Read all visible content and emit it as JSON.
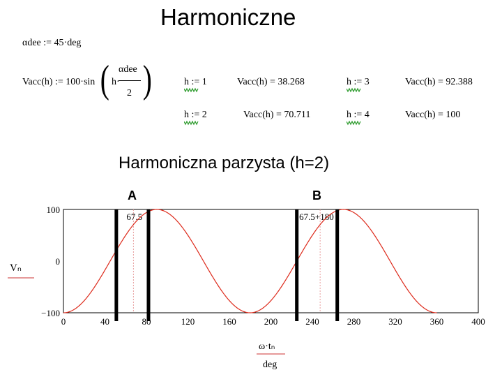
{
  "title": "Harmoniczne",
  "subtitle": "Harmoniczna parzysta (h=2)",
  "equations": {
    "adee_def": "αdee := 45·deg",
    "vacc_lhs": "Vacc(h) := 100·sin",
    "vacc_h": "h·",
    "vacc_num": "αdee",
    "vacc_den": "2"
  },
  "results": [
    {
      "def": "h := 1",
      "value": "Vacc(h) = 38.268"
    },
    {
      "def": "h := 3",
      "value": "Vacc(h) = 92.388"
    },
    {
      "def": "h := 2",
      "value": "Vacc(h) = 70.711"
    },
    {
      "def": "h := 4",
      "value": "Vacc(h) = 100"
    }
  ],
  "markers": {
    "a": "A",
    "b": "B"
  },
  "chart_data": {
    "type": "line",
    "xlim": [
      0,
      400
    ],
    "ylim": [
      -100,
      100
    ],
    "x_ticks": [
      "0",
      "40",
      "80",
      "120",
      "160",
      "200",
      "240",
      "280",
      "320",
      "360",
      "400"
    ],
    "y_ticks": [
      "100",
      "0",
      "−100"
    ],
    "ylabel": "Vₙ",
    "xlabel_num": "ω·tₙ",
    "xlabel_den": "deg",
    "series": [
      {
        "formula": "100·sin(2·(x − 45))",
        "x_range": [
          0,
          360
        ],
        "color": "#dd2a1b"
      }
    ],
    "vlines": [
      {
        "x": 67.5,
        "label": "67.5"
      },
      {
        "x": 247.5,
        "label": "67.5+180"
      }
    ],
    "thick_bars": [
      51,
      82,
      225,
      264
    ],
    "colors": {
      "curve": "#dd2a1b",
      "bars": "#000000",
      "vline": "#e8a0a0",
      "axis_line": "#cc3333"
    }
  }
}
